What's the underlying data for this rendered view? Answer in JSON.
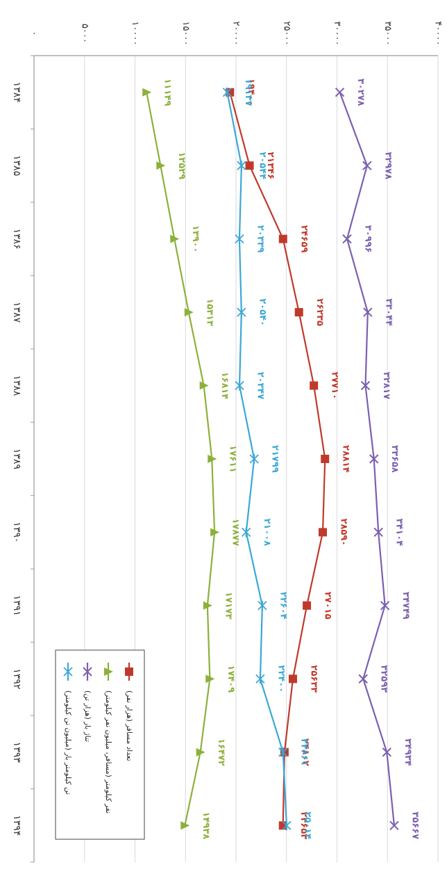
{
  "chart_data": {
    "type": "line",
    "orientation": "rotated 90 degrees clockwise (categories run top to bottom, value axis increases leftward)",
    "categories": [
      "۱۳۸۴",
      "۱۳۸۵",
      "۱۳۸۶",
      "۱۳۸۷",
      "۱۳۸۸",
      "۱۳۸۹",
      "۱۳۹۰",
      "۱۳۹۱",
      "۱۳۹۲",
      "۱۳۹۳",
      "۱۳۹۴"
    ],
    "ylim": [
      0,
      40000
    ],
    "y_ticks": [
      0,
      5000,
      10000,
      15000,
      20000,
      25000,
      30000,
      35000,
      40000
    ],
    "y_tick_labels": [
      "۰",
      "۵۰۰۰",
      "۱۰۰۰۰",
      "۱۵۰۰۰",
      "۲۰۰۰۰",
      "۲۵۰۰۰",
      "۳۰۰۰۰",
      "۳۵۰۰۰",
      "۴۰۰۰۰"
    ],
    "grid": true,
    "legend_position": "bottom-right",
    "series": [
      {
        "name": "تعداد مسافر (هزار نفر)",
        "color": "#c0392b",
        "marker": "square",
        "values": [
          19400,
          21346,
          24659,
          26235,
          27710,
          28814,
          28590,
          27015,
          25633,
          24802,
          24653
        ],
        "labels": [
          "۱۹۴۰۰",
          "۲۱۳۴۶",
          "۲۴۶۵۹",
          "۲۶۲۳۵",
          "۲۷۷۱۰",
          "۲۸۸۱۴",
          "۲۸۵۹۰",
          "۲۷۰۱۵",
          "۲۵۶۳۳",
          "۲۴۸۰۲",
          "۲۴۶۵۳"
        ]
      },
      {
        "name": "نفر کیلومتر (مسافر، میلیون نفر کیلومتر)",
        "color": "#8bb13a",
        "marker": "triangle",
        "values": [
          11149,
          12529,
          13900,
          15313,
          16814,
          17611,
          17877,
          17173,
          17409,
          16472,
          14938
        ],
        "labels": [
          "۱۱۱۴۹",
          "۱۲۵۲۹",
          "۱۳۹۰۰",
          "۱۵۳۱۳",
          "۱۶۸۱۴",
          "۱۷۶۱۱",
          "۱۷۸۷۷",
          "۱۷۱۷۳",
          "۱۷۴۰۹",
          "۱۶۴۷۲",
          "۱۴۹۳۸"
        ]
      },
      {
        "name": "تناژ بار (هزار تن)",
        "color": "#7b5fb0",
        "marker": "x",
        "values": [
          30278,
          32978,
          30996,
          33044,
          32817,
          33658,
          34104,
          34749,
          32593,
          34934,
          35667
        ],
        "labels": [
          "۳۰۲۷۸",
          "۳۲۹۷۸",
          "۳۰۹۹۶",
          "۳۳۰۴۴",
          "۳۲۸۱۷",
          "۳۳۶۵۸",
          "۳۴۱۰۴",
          "۳۴۷۴۹",
          "۳۲۵۹۳",
          "۳۴۹۳۴",
          "۳۵۶۶۷"
        ]
      },
      {
        "name": "تن کیلومتر بار (میلیون تن کیلومتر)",
        "color": "#3ba7d6",
        "marker": "star",
        "values": [
          19137,
          20544,
          20339,
          20540,
          20347,
          21799,
          21008,
          22604,
          22400,
          24661,
          25014
        ],
        "labels": [
          "۱۹۱۳۷",
          "۲۰۵۴۴",
          "۲۰۳۳۹",
          "۲۰۵۴۰",
          "۲۰۳۴۷",
          "۲۱۷۹۹",
          "۲۱۰۰۸",
          "۲۲۶۰۴",
          "۲۲۴۰۰",
          "۲۴۶۶۱",
          "۲۵۰۱۴"
        ]
      }
    ]
  }
}
